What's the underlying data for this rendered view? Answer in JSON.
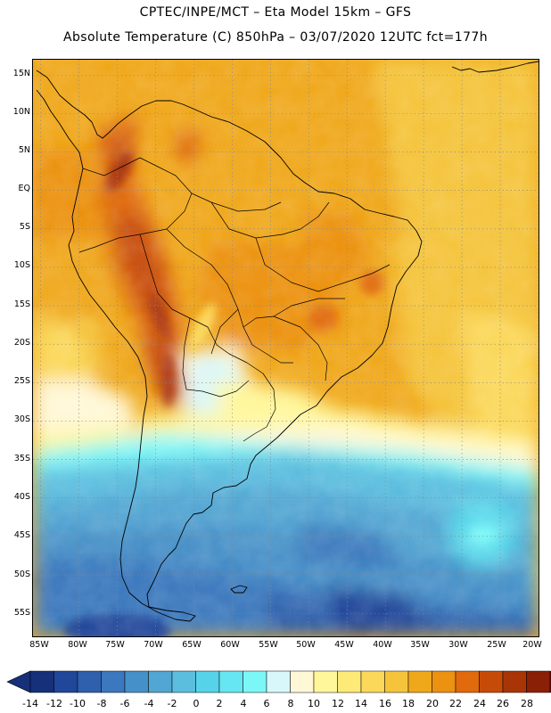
{
  "header": {
    "line1": "CPTEC/INPE/MCT –  Eta Model 15km – GFS",
    "line2": "Absolute Temperature (C) 850hPa – 03/07/2020 12UTC fct=177h"
  },
  "map": {
    "lat_range": [
      -58,
      17
    ],
    "lon_range": [
      -86,
      -20
    ],
    "lat_labels": [
      "15N",
      "10N",
      "5N",
      "EQ",
      "5S",
      "10S",
      "15S",
      "20S",
      "25S",
      "30S",
      "35S",
      "40S",
      "45S",
      "50S",
      "55S"
    ],
    "lon_labels": [
      "85W",
      "80W",
      "75W",
      "70W",
      "65W",
      "60W",
      "55W",
      "50W",
      "45W",
      "40W",
      "35W",
      "30W",
      "25W",
      "20W"
    ],
    "gridlines": true,
    "coastline_color": "#000000",
    "field_description": "temperature shading"
  },
  "colorbar": {
    "labels": [
      "-14",
      "-12",
      "-10",
      "-8",
      "-6",
      "-4",
      "-2",
      "0",
      "2",
      "4",
      "6",
      "8",
      "10",
      "12",
      "14",
      "16",
      "18",
      "20",
      "22",
      "24",
      "26",
      "28"
    ],
    "colors": [
      "#16307a",
      "#20479a",
      "#2e60ad",
      "#3b78bd",
      "#4690c8",
      "#52a6d3",
      "#5bbedf",
      "#56d3e8",
      "#66e6f2",
      "#7cf7f7",
      "#d7f7fb",
      "#fff8d7",
      "#fff79a",
      "#feea76",
      "#fbd85a",
      "#f5c43a",
      "#f0a81b",
      "#ec9110",
      "#e06a0c",
      "#c74b08",
      "#a93507",
      "#8a2006",
      "#6d1005"
    ],
    "lower_arrow_color": "#16307a",
    "upper_arrow_color": "#6d1005"
  }
}
